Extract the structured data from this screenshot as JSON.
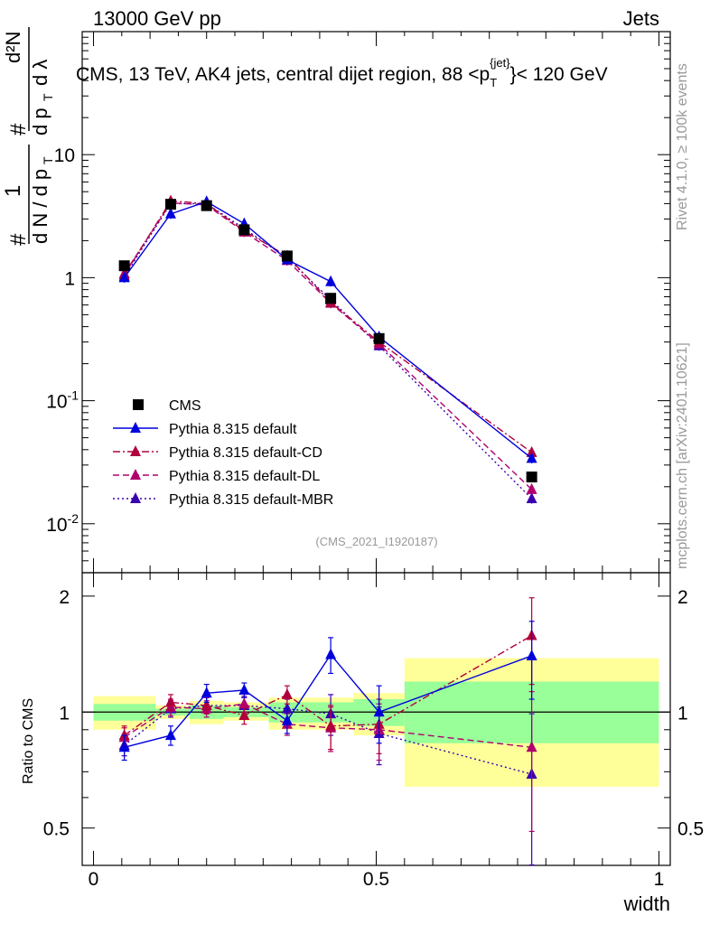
{
  "header": {
    "left": "13000 GeV pp",
    "right": "Jets"
  },
  "side_texts": {
    "rivet": "Rivet 4.1.0, ≥ 100k events",
    "mcplots": "mcplots.cern.ch [arXiv:2401.10621]"
  },
  "colors": {
    "data": "#000000",
    "default": "#0000dd",
    "cd": "#b0003c",
    "dl": "#b0006e",
    "mbr": "#3a00b0",
    "band_inner": "#99ff99",
    "band_outer": "#ffff99"
  },
  "chart_data": [
    {
      "type": "line",
      "title": "CMS, 13 TeV, AK4 jets, central dijet region, 88 <p_T^{jet}< 120 GeV",
      "ylabel": "(1/dN/dp_T) d²N/(dp_T dλ)",
      "xlabel": "",
      "yscale": "log",
      "ylim": [
        0.004,
        100
      ],
      "xlim": [
        -0.02,
        1.02
      ],
      "ytick_labels": [
        "10^-2",
        "10^-1",
        "1",
        "10"
      ],
      "watermark": "(CMS_2021_I1920187)",
      "legend_position": "bottom-left",
      "x": [
        0.0545,
        0.1365,
        0.2,
        0.2665,
        0.3425,
        0.4195,
        0.505,
        0.775
      ],
      "series": [
        {
          "name": "CMS",
          "key": "data",
          "marker": "square",
          "dash": "none",
          "values": [
            1.25,
            3.95,
            3.85,
            2.45,
            1.5,
            0.68,
            0.32,
            0.024
          ]
        },
        {
          "name": "Pythia 8.315 default",
          "key": "default",
          "marker": "triangle",
          "dash": "solid",
          "values": [
            1.0,
            3.3,
            4.15,
            2.75,
            1.4,
            0.93,
            0.33,
            0.034
          ]
        },
        {
          "name": "Pythia 8.315 default-CD",
          "key": "cd",
          "marker": "triangle",
          "dash": "dashdot",
          "values": [
            1.05,
            4.2,
            4.0,
            2.4,
            1.5,
            0.63,
            0.3,
            0.038
          ]
        },
        {
          "name": "Pythia 8.315 default-DL",
          "key": "dl",
          "marker": "triangle",
          "dash": "dashed",
          "values": [
            1.08,
            4.05,
            3.9,
            2.35,
            1.38,
            0.62,
            0.29,
            0.019
          ]
        },
        {
          "name": "Pythia 8.315 default-MBR",
          "key": "mbr",
          "marker": "triangle",
          "dash": "dotted",
          "values": [
            1.02,
            4.0,
            4.0,
            2.5,
            1.45,
            0.66,
            0.28,
            0.016
          ]
        }
      ]
    },
    {
      "type": "line",
      "title": "",
      "ylabel": "Ratio to CMS",
      "xlabel": "width",
      "ylim": [
        0.4,
        2.3
      ],
      "xlim": [
        -0.02,
        1.02
      ],
      "ytick_labels": [
        "0.5",
        "1",
        "2"
      ],
      "xtick_labels": [
        "0",
        "0.5",
        "1"
      ],
      "reference_line": 1,
      "bands": [
        {
          "x_range": [
            0.0,
            0.11
          ],
          "inner": [
            0.95,
            1.05
          ],
          "outer": [
            0.9,
            1.1
          ]
        },
        {
          "x_range": [
            0.11,
            0.17
          ],
          "inner": [
            0.98,
            1.02
          ],
          "outer": [
            0.96,
            1.04
          ]
        },
        {
          "x_range": [
            0.17,
            0.23
          ],
          "inner": [
            0.96,
            1.04
          ],
          "outer": [
            0.93,
            1.07
          ]
        },
        {
          "x_range": [
            0.23,
            0.31
          ],
          "inner": [
            0.97,
            1.03
          ],
          "outer": [
            0.95,
            1.06
          ]
        },
        {
          "x_range": [
            0.31,
            0.38
          ],
          "inner": [
            0.94,
            1.06
          ],
          "outer": [
            0.9,
            1.09
          ]
        },
        {
          "x_range": [
            0.38,
            0.46
          ],
          "inner": [
            0.94,
            1.06
          ],
          "outer": [
            0.9,
            1.09
          ]
        },
        {
          "x_range": [
            0.46,
            0.55
          ],
          "inner": [
            0.92,
            1.08
          ],
          "outer": [
            0.87,
            1.12
          ]
        },
        {
          "x_range": [
            0.55,
            1.0
          ],
          "inner": [
            0.83,
            1.2
          ],
          "outer": [
            0.64,
            1.38
          ]
        }
      ],
      "x": [
        0.0545,
        0.1365,
        0.2,
        0.2665,
        0.3425,
        0.4195,
        0.505,
        0.775
      ],
      "series": [
        {
          "name": "Pythia 8.315 default",
          "key": "default",
          "marker": "triangle",
          "dash": "solid",
          "values": [
            0.81,
            0.87,
            1.12,
            1.14,
            0.95,
            1.41,
            1.0,
            1.4
          ],
          "err": [
            0.06,
            0.05,
            0.06,
            0.05,
            0.07,
            0.15,
            0.17,
            0.32
          ]
        },
        {
          "name": "Pythia 8.315 default-CD",
          "key": "cd",
          "marker": "triangle",
          "dash": "dashdot",
          "values": [
            0.87,
            1.06,
            1.04,
            0.98,
            1.11,
            0.92,
            0.93,
            1.58
          ],
          "err": [
            0.05,
            0.05,
            0.05,
            0.05,
            0.06,
            0.12,
            0.15,
            0.4
          ]
        },
        {
          "name": "Pythia 8.315 default-DL",
          "key": "dl",
          "marker": "triangle",
          "dash": "dashed",
          "values": [
            0.86,
            1.03,
            1.02,
            1.05,
            0.93,
            0.91,
            0.9,
            0.81
          ],
          "err": [
            0.05,
            0.05,
            0.05,
            0.05,
            0.06,
            0.12,
            0.15,
            0.32
          ]
        },
        {
          "name": "Pythia 8.315 default-MBR",
          "key": "mbr",
          "marker": "triangle",
          "dash": "dotted",
          "values": [
            0.82,
            1.02,
            1.04,
            1.04,
            1.02,
            0.99,
            0.88,
            0.69
          ],
          "err": [
            0.05,
            0.05,
            0.05,
            0.05,
            0.06,
            0.12,
            0.15,
            0.3
          ]
        }
      ]
    }
  ]
}
